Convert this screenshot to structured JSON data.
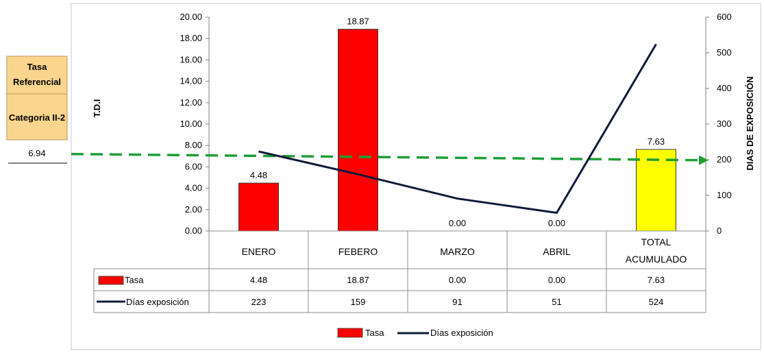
{
  "reference": {
    "header_line1": "Tasa",
    "header_line2": "Referencial",
    "category": "Categoria II-2",
    "value": "6.94"
  },
  "chart_data": {
    "type": "bar",
    "categories": [
      [
        "ENERO"
      ],
      [
        "FEBERO"
      ],
      [
        "MARZO"
      ],
      [
        "ABRIL"
      ],
      [
        "TOTAL",
        "ACUMULADO"
      ]
    ],
    "series": [
      {
        "name": "Tasa",
        "type": "bar",
        "axis": "left",
        "values": [
          4.48,
          18.87,
          0.0,
          0.0,
          7.63
        ],
        "labels": [
          "4.48",
          "18.87",
          "0.00",
          "0.00",
          "7.63"
        ],
        "colors": [
          "#ff0000",
          "#ff0000",
          "#ff0000",
          "#ff0000",
          "#ffff00"
        ]
      },
      {
        "name": "Días exposición",
        "type": "line",
        "axis": "right",
        "values": [
          223,
          159,
          91,
          51,
          524
        ],
        "labels": [
          "223",
          "159",
          "91",
          "51",
          "524"
        ],
        "color": "#0d1a3a"
      }
    ],
    "reference_line": {
      "value": 6.94,
      "axis": "left",
      "color": "#1e9e35",
      "style": "dashed-arrow"
    },
    "left_axis": {
      "title": "T.D.I",
      "ylim": [
        0,
        20
      ],
      "ticks": [
        "0.00",
        "2.00",
        "4.00",
        "6.00",
        "8.00",
        "10.00",
        "12.00",
        "14.00",
        "16.00",
        "18.00",
        "20.00"
      ]
    },
    "right_axis": {
      "title": "DIAS DE EXPOSICIÓN",
      "ylim": [
        0,
        600
      ],
      "ticks": [
        "0",
        "100",
        "200",
        "300",
        "400",
        "500",
        "600"
      ]
    },
    "legend": {
      "position": "bottom",
      "items": [
        "Tasa",
        "Días exposición"
      ]
    },
    "data_table": true,
    "grid": false
  }
}
